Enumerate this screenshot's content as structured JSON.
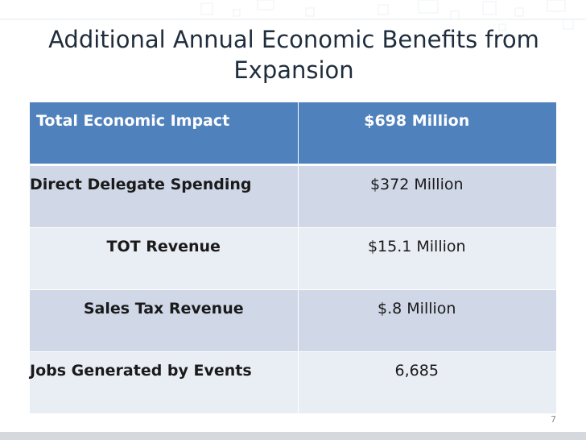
{
  "slide": {
    "title": "Additional Annual Economic Benefits from Expansion",
    "page_number": "7"
  },
  "table": {
    "rows": [
      {
        "label": "Total Economic Impact",
        "value": "$698 Million"
      },
      {
        "label": "Direct Delegate Spending",
        "value": "$372 Million"
      },
      {
        "label": "TOT Revenue",
        "value": "$15.1 Million"
      },
      {
        "label": "Sales Tax Revenue",
        "value": "$.8 Million"
      },
      {
        "label": "Jobs Generated by Events",
        "value": "6,685"
      }
    ]
  },
  "colors": {
    "header_fill": "#4f81bd",
    "band_dark": "#d0d8e8",
    "band_light": "#e9edf4",
    "title_text": "#1f2d3d"
  }
}
